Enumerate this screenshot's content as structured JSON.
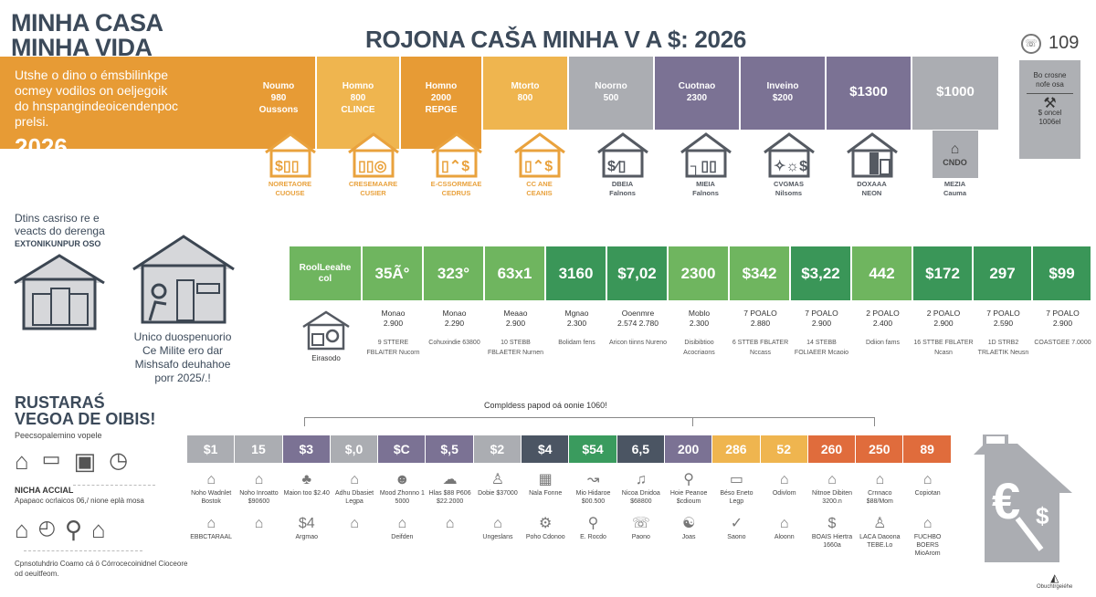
{
  "brand": {
    "line1": "MINHA CASA",
    "line2": "MINHA VIDA"
  },
  "main_title": "ROJONA CAŠA MINHA V A $: 2026",
  "phone_badge": {
    "icon": "phone-icon",
    "number": "109"
  },
  "side_card": {
    "line1": "Bo crosne",
    "line2": "nofe osa",
    "line3": "csotsra",
    "line4": "$ oncel",
    "line5": "1006el"
  },
  "intro": {
    "text": "Utshe o dino o émsbilinkpe ocmey vodilos on oeljegoik do hnspangindeoicendenpoc prelsi.",
    "year": "2026",
    "inner_tile": {
      "line1": "Noumo",
      "line2": "980",
      "line3": "Oussons"
    }
  },
  "top_tiles": [
    {
      "line1": "Homno",
      "line2": "800",
      "line3": "CLINCE",
      "color": "#efb54f"
    },
    {
      "line1": "Homno",
      "line2": "2000",
      "line3": "REPGE",
      "color": "#e79b35"
    },
    {
      "line1": "Mtorto",
      "line2": "800",
      "line3": "",
      "color": "#efb54f"
    },
    {
      "line1": "Noorno",
      "line2": "500",
      "line3": "",
      "color": "#abadb2"
    },
    {
      "line1": "Cuotnao",
      "line2": "2300",
      "line3": "",
      "color": "#7b7294"
    },
    {
      "line1": "Inveino",
      "line2": "$200",
      "line3": "",
      "color": "#7b7294"
    },
    {
      "line1": "$1300",
      "line2": "",
      "line3": "",
      "color": "#7b7294",
      "big": true
    },
    {
      "line1": "$1000",
      "line2": "",
      "line3": "",
      "color": "#abadb2",
      "big": true
    }
  ],
  "top_houses": [
    {
      "label1": "NORETAORE",
      "label2": "CUOUSE",
      "color": "#e9a23d"
    },
    {
      "label1": "CRESEMAARE",
      "label2": "CUSIER",
      "color": "#e9a23d"
    },
    {
      "label1": "E-CSSORMEAE",
      "label2": "CEDRUS",
      "color": "#e9a23d"
    },
    {
      "label1": "CC ANE",
      "label2": "CEANIS",
      "color": "#e9a23d"
    },
    {
      "label1": "DBEIA",
      "label2": "Falnons",
      "color": "#555a62"
    },
    {
      "label1": "MIEIA",
      "label2": "Falnons",
      "color": "#555a62"
    },
    {
      "label1": "CVGMAS",
      "label2": "Nilsoms",
      "color": "#555a62"
    },
    {
      "label1": "DOXAAA",
      "label2": "NEON",
      "color": "#555a62"
    },
    {
      "label1": "MEZIA",
      "label2": "Cauma",
      "color": "#555a62",
      "boxed": "CNDO"
    }
  ],
  "left_mid": {
    "line1": "Dtins casriso re e",
    "line2": "veacts do derenga",
    "line3": "EXTONIKUNPUR OSO"
  },
  "mid_quote": {
    "line1": "Unico duospenuorio",
    "line2": "Ce Milite ero dar",
    "line3": "Mishsafo deuhahoe",
    "line4": "porr 2025/.!"
  },
  "green_row": {
    "header": {
      "line1": "RoolLeeahe",
      "line2": "col"
    },
    "cells": [
      {
        "value": "35Ã°",
        "color": "#6fb55f"
      },
      {
        "value": "323°",
        "color": "#6fb55f"
      },
      {
        "value": "63x1",
        "color": "#6fb55f"
      },
      {
        "value": "3160",
        "color": "#3a9658"
      },
      {
        "value": "$7,02",
        "color": "#3a9658"
      },
      {
        "value": "2300",
        "color": "#6fb55f"
      },
      {
        "value": "$342",
        "color": "#6fb55f"
      },
      {
        "value": "$3,22",
        "color": "#3a9658"
      },
      {
        "value": "442",
        "color": "#6fb55f"
      },
      {
        "value": "$172",
        "color": "#3a9658"
      },
      {
        "value": "297",
        "color": "#3a9658"
      },
      {
        "value": "$99",
        "color": "#3a9658"
      }
    ]
  },
  "green_sub": {
    "icon_label": "Eirasodo",
    "cells": [
      {
        "a1": "Monao",
        "a2": "2.900",
        "b": "9 STTERE FBLAITER Nucorn"
      },
      {
        "a1": "Monao",
        "a2": "2.290",
        "b": "Cohuxindie 63800"
      },
      {
        "a1": "Meaao",
        "a2": "2.900",
        "b": "10 STEBB FBLAETER Nurnen"
      },
      {
        "a1": "Mgnao",
        "a2": "2.300",
        "b": "Bolidam fens"
      },
      {
        "a1": "Ooenmre",
        "a2": "2.574 2.780",
        "b": "Aricon tiinns Nureno"
      },
      {
        "a1": "Moblo",
        "a2": "2.300",
        "b": "Disibibtioo Acocriaons"
      },
      {
        "a1": "7 POALO",
        "a2": "2.880",
        "b": "6 STTEB FBLATER Nccass"
      },
      {
        "a1": "7 POALO",
        "a2": "2.900",
        "b": "14 STEBB FOLIAEER Mcaoio"
      },
      {
        "a1": "2 POALO",
        "a2": "2.400",
        "b": "Ddiion fams"
      },
      {
        "a1": "2 POALO",
        "a2": "2.900",
        "b": "16 STTBE FBLATER Ncasn"
      },
      {
        "a1": "7 POALO",
        "a2": "2.590",
        "b": "1D STRB2 TRLAETIK Neusn"
      },
      {
        "a1": "7 POALO",
        "a2": "2.900",
        "b": "COASTGEE 7.0000"
      }
    ]
  },
  "ruster": {
    "title1": "RUSTARAŚ",
    "title2": "VEGOA DE OIBIS!",
    "subtitle": "Peecsopalemino vopele",
    "nicha_title": "NICHA ACCIAL",
    "nicha_sub": "Apapaoc ocrlaicos 06,/ nione eplà mosa",
    "footer": "Cpnsotuhdrio Coamo cá ö Córrocecoinidnel Cioceore od oeuitfeom."
  },
  "strip": {
    "caption": "Compldess papod oá oonie 1060!",
    "cells": [
      {
        "value": "$1",
        "color": "#abadb2"
      },
      {
        "value": "15",
        "color": "#abadb2"
      },
      {
        "value": "$3",
        "color": "#7b7294"
      },
      {
        "value": "$,0",
        "color": "#abadb2"
      },
      {
        "value": "$C",
        "color": "#7b7294"
      },
      {
        "value": "$,5",
        "color": "#7b7294"
      },
      {
        "value": "$2",
        "color": "#abadb2"
      },
      {
        "value": "$4",
        "color": "#4b5563"
      },
      {
        "value": "$54",
        "color": "#3a9b5e"
      },
      {
        "value": "6,5",
        "color": "#4b5563"
      },
      {
        "value": "200",
        "color": "#7b7294"
      },
      {
        "value": "286",
        "color": "#efb54f"
      },
      {
        "value": "52",
        "color": "#efb54f"
      },
      {
        "value": "260",
        "color": "#e06c3c"
      },
      {
        "value": "250",
        "color": "#e06c3c"
      },
      {
        "value": "89",
        "color": "#e06c3c"
      }
    ],
    "icons_row1": [
      {
        "g": "⌂",
        "t": "Noho Wadnlet Bostok"
      },
      {
        "g": "⌂",
        "t": "Noho Inroatto $90600"
      },
      {
        "g": "♣",
        "t": "Maion too $2.40"
      },
      {
        "g": "⌂",
        "t": "Adhu Dbasiet Legpa"
      },
      {
        "g": "☻",
        "t": "Mood Zhonno 1 5000"
      },
      {
        "g": "☁",
        "t": "Hlas $88 P606 $22.2000"
      },
      {
        "g": "♙",
        "t": "Dobie $37000"
      },
      {
        "g": "▦",
        "t": "Nala Fonne"
      },
      {
        "g": "↝",
        "t": "Mio Hidaroe $00.500"
      },
      {
        "g": "♫",
        "t": "Nicoa Dnidoa $68800"
      },
      {
        "g": "⚲",
        "t": "Hoie Peanoe $cdioum"
      },
      {
        "g": "▭",
        "t": "Béso Eneto Legp"
      },
      {
        "g": "⌂",
        "t": "Odivlom"
      },
      {
        "g": "⌂",
        "t": "Nitnoe Dibiten 3200.n"
      },
      {
        "g": "⌂",
        "t": "Crnnaco $88/Mom"
      },
      {
        "g": "⌂",
        "t": "Copiotan"
      }
    ],
    "icons_row2": [
      {
        "g": "⌂",
        "t": "EBBCTARAAL"
      },
      {
        "g": "⌂",
        "t": ""
      },
      {
        "g": "$4",
        "t": "Argmao"
      },
      {
        "g": "⌂",
        "t": ""
      },
      {
        "g": "⌂",
        "t": "Deifden"
      },
      {
        "g": "⌂",
        "t": ""
      },
      {
        "g": "⌂",
        "t": "Ungeslans"
      },
      {
        "g": "⚙",
        "t": "Poho Cdonoo"
      },
      {
        "g": "⚲",
        "t": "E. Rocdo"
      },
      {
        "g": "☏",
        "t": "Paono"
      },
      {
        "g": "☯",
        "t": "Joas"
      },
      {
        "g": "✓",
        "t": "Saono"
      },
      {
        "g": "⌂",
        "t": "Aloonn"
      },
      {
        "g": "$",
        "t": "BOAIS Hiertra 1660a"
      },
      {
        "g": "♙",
        "t": "LACA Daoona TEBE.Lo"
      },
      {
        "g": "⌂",
        "t": "FUCHBO BOERS MioArom"
      }
    ]
  },
  "footer_logo": "Obuchtrgeiéhe"
}
